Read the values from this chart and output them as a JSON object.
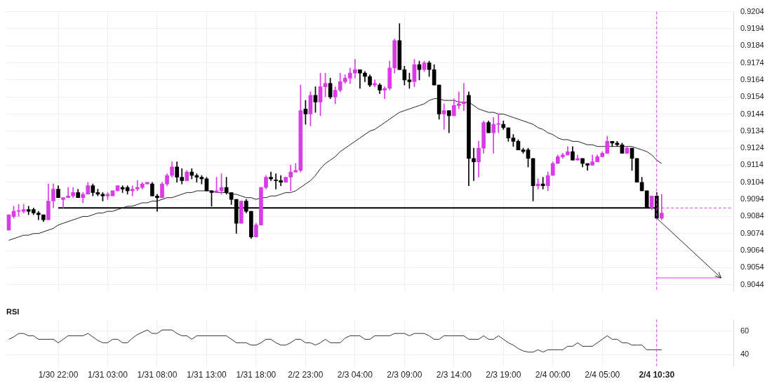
{
  "chart_data": [
    {
      "type": "candlestick",
      "categories": [
        null,
        null,
        null,
        null,
        null,
        null,
        null,
        null,
        null,
        null,
        "1/30 22:00",
        null,
        null,
        null,
        null,
        null,
        null,
        null,
        null,
        null,
        "1/31 03:00",
        null,
        null,
        null,
        null,
        null,
        null,
        null,
        null,
        null,
        "1/31 08:00",
        null,
        null,
        null,
        null,
        null,
        null,
        null,
        null,
        null,
        "1/31 13:00",
        null,
        null,
        null,
        null,
        null,
        null,
        null,
        null,
        null,
        "1/31 18:00",
        null,
        null,
        null,
        null,
        null,
        null,
        null,
        null,
        null,
        "2/2 23:00",
        null,
        null,
        null,
        null,
        null,
        null,
        null,
        null,
        null,
        "2/3 04:00",
        null,
        null,
        null,
        null,
        null,
        null,
        null,
        null,
        null,
        "2/3 09:00",
        null,
        null,
        null,
        null,
        null,
        null,
        null,
        null,
        null,
        "2/3 14:00",
        null,
        null,
        null,
        null,
        null,
        null,
        null,
        null,
        null,
        "2/3 19:00",
        null,
        null,
        null,
        null,
        null,
        null,
        null,
        null,
        null,
        "2/4 00:00",
        null,
        null,
        null,
        null,
        null,
        null,
        null,
        null,
        null,
        "2/4 05:00",
        null,
        null,
        null,
        null,
        null,
        null,
        null,
        null,
        null,
        null,
        "2/4 10:30",
        null,
        null,
        null,
        null,
        null,
        null,
        null,
        null,
        null,
        null,
        null,
        null,
        null,
        null,
        null
      ],
      "ohlc": [
        [
          0.9076,
          0.9085,
          0.9076,
          0.9085
        ],
        [
          0.9084,
          0.909,
          0.9083,
          0.9087
        ],
        [
          0.9087,
          0.9091,
          0.9084,
          0.9087
        ],
        [
          0.9087,
          0.9091,
          0.9086,
          0.9088
        ],
        [
          0.9088,
          0.909,
          0.9085,
          0.9087
        ],
        [
          0.9088,
          0.9089,
          0.9085,
          0.9086
        ],
        [
          0.9086,
          0.9087,
          0.9082,
          0.9085
        ],
        [
          0.9085,
          0.9085,
          0.9081,
          0.9082
        ],
        [
          0.9082,
          0.9103,
          0.9082,
          0.9093
        ],
        [
          0.9093,
          0.9103,
          0.9089,
          0.91
        ],
        [
          0.91,
          0.9102,
          0.9095,
          0.9095
        ],
        [
          0.9094,
          0.9095,
          0.9089,
          0.9095
        ],
        [
          0.9095,
          0.9101,
          0.9095,
          0.9096
        ],
        [
          0.9096,
          0.9101,
          0.9095,
          0.9098
        ],
        [
          0.9098,
          0.91,
          0.9095,
          0.9095
        ],
        [
          0.9095,
          0.9098,
          0.9092,
          0.9097
        ],
        [
          0.9097,
          0.9104,
          0.9097,
          0.9102
        ],
        [
          0.9102,
          0.9103,
          0.9096,
          0.9098
        ],
        [
          0.9098,
          0.91,
          0.9096,
          0.9097
        ],
        [
          0.9097,
          0.9098,
          0.9093,
          0.9096
        ],
        [
          0.9096,
          0.9098,
          0.9094,
          0.9097
        ],
        [
          0.9096,
          0.9099,
          0.9096,
          0.9099
        ],
        [
          0.9099,
          0.9102,
          0.9099,
          0.9102
        ],
        [
          0.9101,
          0.9102,
          0.9098,
          0.91
        ],
        [
          0.9101,
          0.9102,
          0.9097,
          0.9099
        ],
        [
          0.9099,
          0.9102,
          0.9096,
          0.91
        ],
        [
          0.91,
          0.9105,
          0.9099,
          0.9101
        ],
        [
          0.9101,
          0.9104,
          0.91,
          0.9103
        ],
        [
          0.9103,
          0.9104,
          0.9103,
          0.9104
        ],
        [
          0.9103,
          0.9104,
          0.9096,
          0.9096
        ],
        [
          0.9096,
          0.9097,
          0.9087,
          0.9095
        ],
        [
          0.9095,
          0.9104,
          0.9095,
          0.9103
        ],
        [
          0.9103,
          0.9109,
          0.9102,
          0.9108
        ],
        [
          0.9108,
          0.9116,
          0.9107,
          0.9113
        ],
        [
          0.9113,
          0.9116,
          0.9104,
          0.9107
        ],
        [
          0.9107,
          0.9112,
          0.9103,
          0.9105
        ],
        [
          0.9105,
          0.9111,
          0.9105,
          0.911
        ],
        [
          0.911,
          0.9112,
          0.9106,
          0.9108
        ],
        [
          0.9108,
          0.9109,
          0.9104,
          0.9107
        ],
        [
          0.9107,
          0.9108,
          0.9103,
          0.9106
        ],
        [
          0.9106,
          0.9107,
          0.9099,
          0.9099
        ],
        [
          0.9099,
          0.9099,
          0.909,
          0.9098
        ],
        [
          0.9098,
          0.9107,
          0.9098,
          0.9099
        ],
        [
          0.9099,
          0.9109,
          0.9097,
          0.9101
        ],
        [
          0.9101,
          0.9107,
          0.9097,
          0.9098
        ],
        [
          0.9098,
          0.9098,
          0.9091,
          0.9094
        ],
        [
          0.9094,
          0.9094,
          0.9074,
          0.908
        ],
        [
          0.908,
          0.9093,
          0.908,
          0.9093
        ],
        [
          0.9093,
          0.9094,
          0.9086,
          0.9087
        ],
        [
          0.9087,
          0.9087,
          0.9071,
          0.9072
        ],
        [
          0.9072,
          0.908,
          0.9072,
          0.9079
        ],
        [
          0.9079,
          0.9101,
          0.9079,
          0.9101
        ],
        [
          0.9101,
          0.9108,
          0.91,
          0.9107
        ],
        [
          0.9107,
          0.911,
          0.9105,
          0.9106
        ],
        [
          0.9105,
          0.9109,
          0.91,
          0.9105
        ],
        [
          0.9105,
          0.9108,
          0.9102,
          0.9104
        ],
        [
          0.9104,
          0.9107,
          0.9104,
          0.9107
        ],
        [
          0.9107,
          0.9114,
          0.9099,
          0.911
        ],
        [
          0.911,
          0.9115,
          0.911,
          0.9111
        ],
        [
          0.9111,
          0.9161,
          0.911,
          0.9146
        ],
        [
          0.9147,
          0.9152,
          0.9138,
          0.9144
        ],
        [
          0.9144,
          0.9157,
          0.9137,
          0.9155
        ],
        [
          0.9155,
          0.916,
          0.9145,
          0.9151
        ],
        [
          0.9151,
          0.9168,
          0.9143,
          0.916
        ],
        [
          0.916,
          0.9168,
          0.9154,
          0.9162
        ],
        [
          0.9162,
          0.9165,
          0.9153,
          0.9154
        ],
        [
          0.9154,
          0.916,
          0.915,
          0.9158
        ],
        [
          0.9158,
          0.9168,
          0.9157,
          0.9163
        ],
        [
          0.9163,
          0.9167,
          0.9162,
          0.9165
        ],
        [
          0.9165,
          0.9171,
          0.9162,
          0.9168
        ],
        [
          0.9168,
          0.9176,
          0.9165,
          0.917
        ],
        [
          0.917,
          0.917,
          0.9159,
          0.9168
        ],
        [
          0.9168,
          0.9169,
          0.9163,
          0.9166
        ],
        [
          0.9166,
          0.9167,
          0.916,
          0.9161
        ],
        [
          0.9161,
          0.9164,
          0.916,
          0.9162
        ],
        [
          0.9161,
          0.9162,
          0.9156,
          0.9158
        ],
        [
          0.9158,
          0.916,
          0.9153,
          0.9159
        ],
        [
          0.9159,
          0.9175,
          0.9158,
          0.9171
        ],
        [
          0.9171,
          0.9188,
          0.9168,
          0.9187
        ],
        [
          0.9187,
          0.9197,
          0.917,
          0.917
        ],
        [
          0.917,
          0.9172,
          0.9161,
          0.9164
        ],
        [
          0.9164,
          0.9168,
          0.9159,
          0.9163
        ],
        [
          0.9163,
          0.9176,
          0.916,
          0.9173
        ],
        [
          0.9173,
          0.9175,
          0.9164,
          0.917
        ],
        [
          0.917,
          0.9175,
          0.9169,
          0.9174
        ],
        [
          0.9174,
          0.9175,
          0.9166,
          0.917
        ],
        [
          0.917,
          0.9173,
          0.9161,
          0.9161
        ],
        [
          0.9161,
          0.9161,
          0.9141,
          0.9144
        ],
        [
          0.9144,
          0.915,
          0.9135,
          0.9146
        ],
        [
          0.9146,
          0.9146,
          0.9133,
          0.9143
        ],
        [
          0.9143,
          0.9153,
          0.9143,
          0.9149
        ],
        [
          0.9149,
          0.9157,
          0.9147,
          0.915
        ],
        [
          0.915,
          0.9162,
          0.9146,
          0.9151
        ],
        [
          0.9155,
          0.9157,
          0.9102,
          0.9118
        ],
        [
          0.9118,
          0.9124,
          0.9105,
          0.9116
        ],
        [
          0.9116,
          0.9128,
          0.9107,
          0.9124
        ],
        [
          0.9124,
          0.914,
          0.9121,
          0.9139
        ],
        [
          0.9139,
          0.914,
          0.9133,
          0.9133
        ],
        [
          0.9133,
          0.9142,
          0.9121,
          0.9138
        ],
        [
          0.9138,
          0.9144,
          0.9133,
          0.9138
        ],
        [
          0.9138,
          0.914,
          0.9135,
          0.9136
        ],
        [
          0.9136,
          0.9136,
          0.9128,
          0.913
        ],
        [
          0.913,
          0.9132,
          0.9125,
          0.9128
        ],
        [
          0.9128,
          0.9129,
          0.9123,
          0.9123
        ],
        [
          0.9123,
          0.9124,
          0.9121,
          0.9122
        ],
        [
          0.9123,
          0.9124,
          0.9113,
          0.9118
        ],
        [
          0.9118,
          0.9118,
          0.9093,
          0.9102
        ],
        [
          0.9102,
          0.9106,
          0.91,
          0.9103
        ],
        [
          0.9103,
          0.9107,
          0.91,
          0.9102
        ],
        [
          0.9102,
          0.911,
          0.9099,
          0.9108
        ],
        [
          0.9108,
          0.9116,
          0.9108,
          0.9115
        ],
        [
          0.9115,
          0.912,
          0.9115,
          0.9119
        ],
        [
          0.9119,
          0.9121,
          0.9118,
          0.912
        ],
        [
          0.912,
          0.9125,
          0.912,
          0.9122
        ],
        [
          0.9122,
          0.9125,
          0.9117,
          0.9117
        ],
        [
          0.9117,
          0.912,
          0.9117,
          0.9118
        ],
        [
          0.9118,
          0.9118,
          0.9113,
          0.9115
        ],
        [
          0.9115,
          0.9115,
          0.9111,
          0.9114
        ],
        [
          0.9114,
          0.912,
          0.9114,
          0.9116
        ],
        [
          0.9116,
          0.912,
          0.9116,
          0.9119
        ],
        [
          0.9119,
          0.9122,
          0.9119,
          0.9121
        ],
        [
          0.9121,
          0.9131,
          0.9121,
          0.9128
        ],
        [
          0.9128,
          0.9128,
          0.9125,
          0.9127
        ],
        [
          0.9127,
          0.9128,
          0.9125,
          0.9126
        ],
        [
          0.9126,
          0.9127,
          0.9121,
          0.9121
        ],
        [
          0.9121,
          0.9125,
          0.9121,
          0.9124
        ],
        [
          0.9124,
          0.9124,
          0.9111,
          0.9118
        ],
        [
          0.9118,
          0.9118,
          0.9104,
          0.9104
        ],
        [
          0.9104,
          0.9107,
          0.9099,
          0.9099
        ],
        [
          0.9099,
          0.9099,
          0.9089,
          0.9089
        ],
        [
          0.9089,
          0.9096,
          0.9088,
          0.9096
        ],
        [
          0.9096,
          0.9098,
          0.9083,
          0.9083
        ],
        [
          0.9083,
          0.9097,
          0.9082,
          0.9086
        ],
        null,
        null,
        null,
        null,
        null,
        null,
        null,
        null,
        null,
        null,
        null,
        null,
        null,
        null
      ],
      "colors": [
        "#d93be6",
        "#d93be6",
        "#d93be6",
        "#d93be6",
        "#000000",
        "#000000",
        "#000000",
        "#000000",
        "#d93be6",
        "#d93be6",
        "#000000",
        "#d93be6",
        "#d93be6",
        "#d93be6",
        "#000000",
        "#d93be6",
        "#d93be6",
        "#000000",
        "#000000",
        "#000000",
        "#d93be6",
        "#d93be6",
        "#d93be6",
        "#000000",
        "#000000",
        "#d93be6",
        "#d93be6",
        "#d93be6",
        "#d93be6",
        "#000000",
        "#000000",
        "#d93be6",
        "#d93be6",
        "#d93be6",
        "#000000",
        "#000000",
        "#d93be6",
        "#000000",
        "#000000",
        "#000000",
        "#000000",
        "#000000",
        "#d93be6",
        "#d93be6",
        "#000000",
        "#000000",
        "#000000",
        "#d93be6",
        "#000000",
        "#000000",
        "#d93be6",
        "#d93be6",
        "#d93be6",
        "#000000",
        "#000000",
        "#000000",
        "#d93be6",
        "#d93be6",
        "#d93be6",
        "#d93be6",
        "#000000",
        "#d93be6",
        "#000000",
        "#d93be6",
        "#d93be6",
        "#000000",
        "#d93be6",
        "#d93be6",
        "#d93be6",
        "#d93be6",
        "#d93be6",
        "#000000",
        "#000000",
        "#000000",
        "#d93be6",
        "#000000",
        "#d93be6",
        "#d93be6",
        "#d93be6",
        "#000000",
        "#000000",
        "#000000",
        "#d93be6",
        "#000000",
        "#d93be6",
        "#000000",
        "#000000",
        "#000000",
        "#d93be6",
        "#000000",
        "#d93be6",
        "#d93be6",
        "#d93be6",
        "#000000",
        "#000000",
        "#d93be6",
        "#d93be6",
        "#000000",
        "#d93be6",
        "#d93be6",
        "#000000",
        "#000000",
        "#000000",
        "#000000",
        "#000000",
        "#000000",
        "#000000",
        "#d93be6",
        "#000000",
        "#d93be6",
        "#d93be6",
        "#d93be6",
        "#d93be6",
        "#d93be6",
        "#000000",
        "#d93be6",
        "#000000",
        "#000000",
        "#d93be6",
        "#d93be6",
        "#d93be6",
        "#d93be6",
        "#000000",
        "#000000",
        "#000000",
        "#d93be6",
        "#000000",
        "#000000",
        "#000000",
        "#000000",
        "#d93be6",
        "#000000",
        "#d93be6",
        null,
        null,
        null,
        null,
        null,
        null,
        null,
        null,
        null,
        null,
        null,
        null,
        null,
        null
      ],
      "series": [
        {
          "type": "line",
          "color": "#222222",
          "values": [
            0.907,
            0.9071,
            0.9072,
            0.9073,
            0.9073,
            0.9074,
            0.9074,
            0.9075,
            0.9076,
            0.9077,
            0.9079,
            0.908,
            0.9081,
            0.9082,
            0.9083,
            0.9084,
            0.9084,
            0.9085,
            0.9086,
            0.9086,
            0.9087,
            0.9087,
            0.9088,
            0.9089,
            0.909,
            0.909,
            0.9091,
            0.9092,
            0.9092,
            0.9093,
            0.9093,
            0.9094,
            0.9095,
            0.9095,
            0.9096,
            0.9097,
            0.9098,
            0.9098,
            0.9099,
            0.9099,
            0.9099,
            0.9099,
            0.9098,
            0.9098,
            0.9098,
            0.9097,
            0.9097,
            0.9096,
            0.9095,
            0.9095,
            0.9094,
            0.9095,
            0.9095,
            0.9096,
            0.9096,
            0.9097,
            0.9098,
            0.9098,
            0.9099,
            0.9101,
            0.9103,
            0.9105,
            0.9108,
            0.9112,
            0.9115,
            0.9117,
            0.9119,
            0.9122,
            0.9124,
            0.9126,
            0.9128,
            0.913,
            0.9132,
            0.9134,
            0.9135,
            0.9137,
            0.9139,
            0.9141,
            0.9143,
            0.9145,
            0.9146,
            0.9147,
            0.9148,
            0.9149,
            0.915,
            0.9152,
            0.9153,
            0.9153,
            0.9152,
            0.9152,
            0.9152,
            0.9151,
            0.9151,
            0.9151,
            0.9149,
            0.9147,
            0.9146,
            0.9145,
            0.9145,
            0.9144,
            0.9144,
            0.9143,
            0.9142,
            0.9141,
            0.914,
            0.9139,
            0.9138,
            0.9136,
            0.9135,
            0.9133,
            0.9132,
            0.913,
            0.9129,
            0.9129,
            0.9128,
            0.9128,
            0.9127,
            0.9126,
            0.9126,
            0.9125,
            0.9125,
            0.9125,
            0.9125,
            0.9125,
            0.9125,
            0.9125,
            0.9125,
            0.9124,
            0.9123,
            0.9122,
            0.912,
            0.9117,
            0.9115,
            null,
            null,
            null,
            null,
            null,
            null,
            null,
            null,
            null,
            null,
            null,
            null,
            null,
            null
          ]
        },
        {
          "type": "line",
          "color": "#000000",
          "x": [
            "1/30 22:00",
            "2/4 10:30"
          ],
          "values": [
            0.9089,
            0.9089
          ]
        },
        {
          "type": "line",
          "color": "#d93be6",
          "line_style": "dashed",
          "values": [
            null,
            null,
            null,
            null,
            null,
            null,
            null,
            null,
            null,
            null,
            null,
            null,
            null,
            null,
            null,
            null,
            null,
            null,
            null,
            null,
            null,
            null,
            null,
            null,
            null,
            null,
            null,
            null,
            null,
            null,
            null,
            null,
            null,
            null,
            null,
            null,
            null,
            null,
            null,
            null,
            null,
            null,
            null,
            null,
            null,
            null,
            null,
            null,
            null,
            null,
            null,
            null,
            null,
            null,
            null,
            null,
            null,
            null,
            null,
            null,
            null,
            null,
            null,
            null,
            null,
            null,
            null,
            null,
            null,
            null,
            null,
            null,
            null,
            null,
            null,
            null,
            null,
            null,
            null,
            null,
            null,
            null,
            null,
            null,
            null,
            null,
            null,
            null,
            null,
            null,
            null,
            null,
            null,
            null,
            null,
            null,
            null,
            null,
            null,
            null,
            null,
            null,
            null,
            null,
            null,
            null,
            null,
            null,
            null,
            null,
            null,
            null,
            null,
            null,
            null,
            null,
            null,
            null,
            null,
            null,
            null,
            null,
            null,
            null,
            null,
            null,
            null,
            null,
            null,
            null,
            null,
            0.9089,
            0.9089,
            0.9089,
            0.9089,
            0.9089,
            0.9089,
            0.9089,
            0.9089,
            0.9089,
            0.9089,
            0.9089,
            0.9089,
            0.9089,
            0.9089,
            0.9089,
            0.9089
          ]
        },
        {
          "type": "line",
          "color": "#d93be6",
          "values": [
            null,
            null,
            null,
            null,
            null,
            null,
            null,
            null,
            null,
            null,
            null,
            null,
            null,
            null,
            null,
            null,
            null,
            null,
            null,
            null,
            null,
            null,
            null,
            null,
            null,
            null,
            null,
            null,
            null,
            null,
            null,
            null,
            null,
            null,
            null,
            null,
            null,
            null,
            null,
            null,
            null,
            null,
            null,
            null,
            null,
            null,
            null,
            null,
            null,
            null,
            null,
            null,
            null,
            null,
            null,
            null,
            null,
            null,
            null,
            null,
            null,
            null,
            null,
            null,
            null,
            null,
            null,
            null,
            null,
            null,
            null,
            null,
            null,
            null,
            null,
            null,
            null,
            null,
            null,
            null,
            null,
            null,
            null,
            null,
            null,
            null,
            null,
            null,
            null,
            null,
            null,
            null,
            null,
            null,
            null,
            null,
            null,
            null,
            null,
            null,
            null,
            null,
            null,
            null,
            null,
            null,
            null,
            null,
            null,
            null,
            null,
            null,
            null,
            null,
            null,
            null,
            null,
            null,
            null,
            null,
            null,
            null,
            null,
            null,
            null,
            null,
            null,
            null,
            null,
            null,
            null,
            0.9048,
            0.9048,
            0.9048,
            0.9048,
            0.9048,
            0.9048,
            0.9048,
            0.9048,
            0.9048,
            0.9048,
            0.9048,
            0.9048,
            0.9048,
            0.9048,
            null,
            null
          ]
        }
      ],
      "ylim": [
        0.904,
        0.9204
      ],
      "yticks": [
        0.9044,
        0.9054,
        0.9064,
        0.9074,
        0.9084,
        0.9094,
        0.9104,
        0.9114,
        0.9124,
        0.9134,
        0.9144,
        0.9154,
        0.9164,
        0.9174,
        0.9184,
        0.9194,
        0.9204
      ],
      "grid": true,
      "tick_labels": "y",
      "ref_lines": [
        {
          "axis": "x",
          "value": "2/4 10:30",
          "color": "#d93be6",
          "line_style": "dashed"
        }
      ]
    },
    {
      "type": "line",
      "title": "RSI",
      "categories": [
        null,
        null,
        null,
        null,
        null,
        null,
        null,
        null,
        null,
        null,
        "1/30 22:00",
        null,
        null,
        null,
        null,
        null,
        null,
        null,
        null,
        null,
        "1/31 03:00",
        null,
        null,
        null,
        null,
        null,
        null,
        null,
        null,
        null,
        "1/31 08:00",
        null,
        null,
        null,
        null,
        null,
        null,
        null,
        null,
        null,
        "1/31 13:00",
        null,
        null,
        null,
        null,
        null,
        null,
        null,
        null,
        null,
        "1/31 18:00",
        null,
        null,
        null,
        null,
        null,
        null,
        null,
        null,
        null,
        "2/2 23:00",
        null,
        null,
        null,
        null,
        null,
        null,
        null,
        null,
        null,
        "2/3 04:00",
        null,
        null,
        null,
        null,
        null,
        null,
        null,
        null,
        null,
        "2/3 09:00",
        null,
        null,
        null,
        null,
        null,
        null,
        null,
        null,
        null,
        "2/3 14:00",
        null,
        null,
        null,
        null,
        null,
        null,
        null,
        null,
        null,
        "2/3 19:00",
        null,
        null,
        null,
        null,
        null,
        null,
        null,
        null,
        null,
        "2/4 00:00",
        null,
        null,
        null,
        null,
        null,
        null,
        null,
        null,
        null,
        "2/4 05:00",
        null,
        null,
        null,
        null,
        null,
        null,
        null,
        null,
        null,
        null,
        "2/4 10:30",
        null,
        null,
        null,
        null,
        null,
        null,
        null,
        null,
        null,
        null,
        null,
        null,
        null,
        null,
        null
      ],
      "series": [
        {
          "color": "#333333",
          "values": [
            53,
            55,
            58,
            58,
            56,
            56,
            53,
            53,
            53,
            53,
            50,
            53,
            56,
            56,
            56,
            56,
            58,
            55,
            52,
            50,
            50,
            53,
            53,
            50,
            50,
            54,
            57,
            59,
            61,
            58,
            58,
            61,
            61,
            61,
            58,
            56,
            56,
            53,
            56,
            56,
            56,
            56,
            56,
            56,
            56,
            53,
            50,
            50,
            50,
            48,
            48,
            50,
            53,
            53,
            50,
            48,
            48,
            50,
            53,
            53,
            50,
            50,
            48,
            50,
            53,
            50,
            50,
            50,
            54,
            56,
            56,
            56,
            53,
            53,
            56,
            56,
            56,
            56,
            58,
            58,
            58,
            56,
            58,
            58,
            58,
            56,
            53,
            53,
            56,
            56,
            56,
            56,
            56,
            53,
            53,
            53,
            56,
            53,
            53,
            56,
            53,
            50,
            48,
            45,
            43,
            42,
            42,
            44,
            42,
            44,
            44,
            44,
            44,
            47,
            47,
            50,
            47,
            47,
            47,
            50,
            53,
            56,
            53,
            53,
            50,
            50,
            48,
            48,
            48,
            44,
            44,
            44,
            44,
            null,
            null,
            null,
            null,
            null,
            null,
            null,
            null,
            null,
            null,
            null,
            null,
            null,
            null
          ]
        }
      ],
      "ylim": [
        30,
        70
      ],
      "yticks": [
        40,
        60
      ],
      "grid": true,
      "ref_lines": [
        {
          "axis": "x",
          "value": "2/4 10:30",
          "color": "#d93be6",
          "line_style": "dashed"
        }
      ]
    }
  ]
}
